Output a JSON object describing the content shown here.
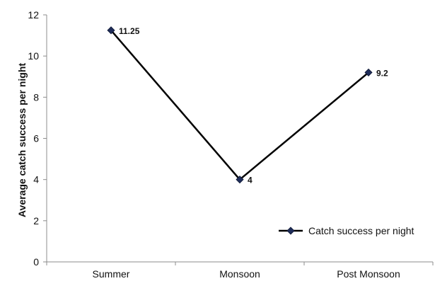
{
  "chart_data": {
    "type": "line",
    "categories": [
      "Summer",
      "Monsoon",
      "Post Monsoon"
    ],
    "series": [
      {
        "name": "Catch success per night",
        "values": [
          11.25,
          4,
          9.2
        ],
        "data_labels": [
          "11.25",
          "4",
          "9.2"
        ],
        "color": "#000000"
      }
    ],
    "title": "",
    "xlabel": "",
    "ylabel": "Average catch success per night",
    "ylim": [
      0,
      12
    ],
    "yticks": [
      0,
      2,
      4,
      6,
      8,
      10,
      12
    ],
    "grid": false,
    "legend_position": "bottom-right"
  }
}
